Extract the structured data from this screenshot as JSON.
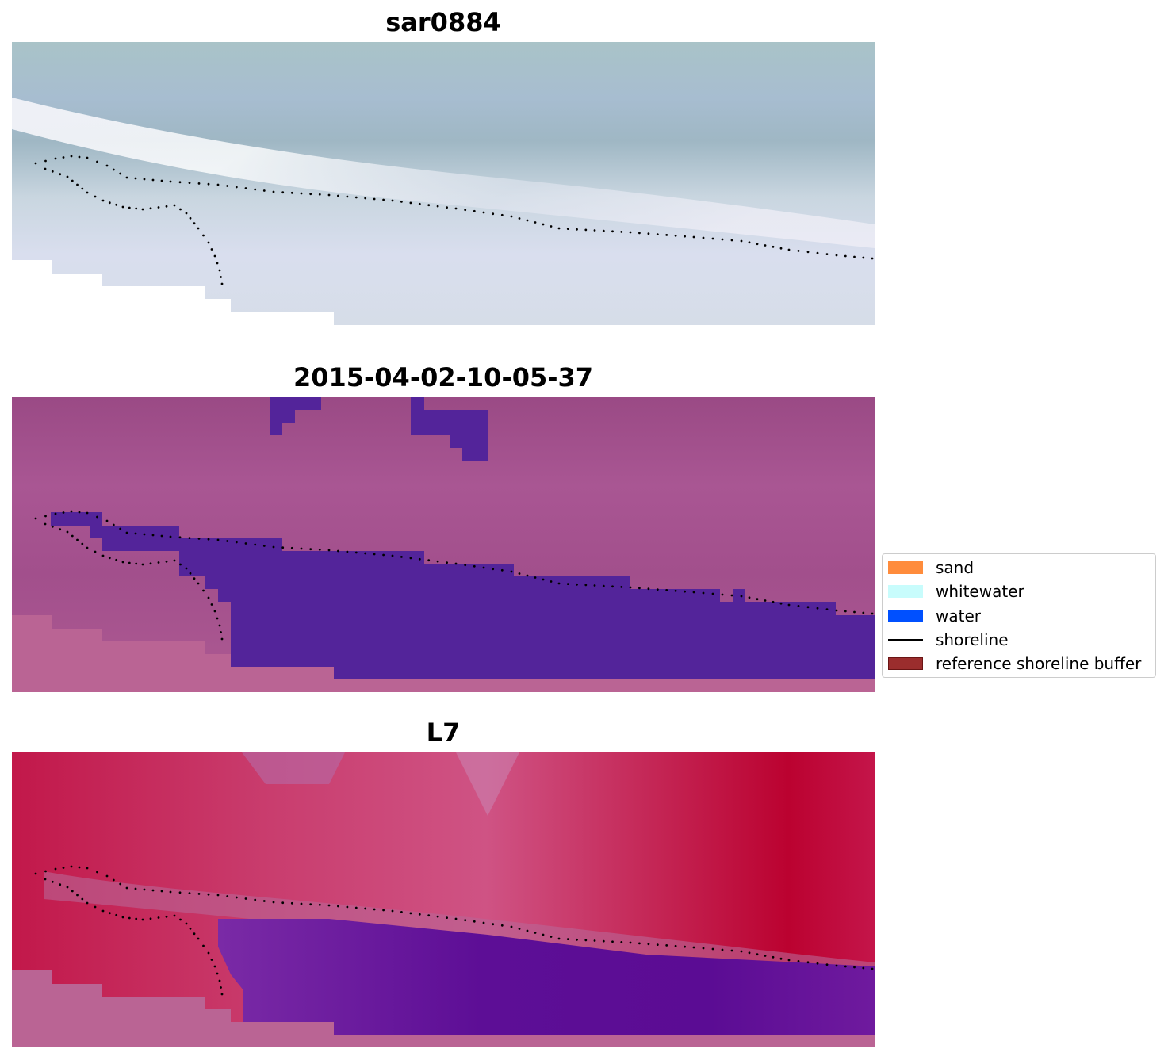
{
  "panels": [
    {
      "title": "sar0884",
      "style": "rgb"
    },
    {
      "title": "2015-04-02-10-05-37",
      "style": "classified"
    },
    {
      "title": "L7",
      "style": "falsecolor"
    }
  ],
  "legend": {
    "items": [
      {
        "label": "sand",
        "color": "#ff8c3c",
        "kind": "patch"
      },
      {
        "label": "whitewater",
        "color": "#c8fcfc",
        "kind": "patch"
      },
      {
        "label": "water",
        "color": "#0050ff",
        "kind": "patch"
      },
      {
        "label": "shoreline",
        "color": "#000000",
        "kind": "line"
      },
      {
        "label": "reference shoreline buffer",
        "color": "#9b2d2d",
        "kind": "patch"
      }
    ]
  },
  "colors": {
    "rgb_water": "#9fb7c4",
    "rgb_beach": "#dde3ee",
    "class_background": "#a24f8c",
    "class_water": "#53249a",
    "class_land": "#ba6494",
    "false_land": "#c0224e",
    "false_water": "#6a159c",
    "false_edge": "#b96696"
  }
}
